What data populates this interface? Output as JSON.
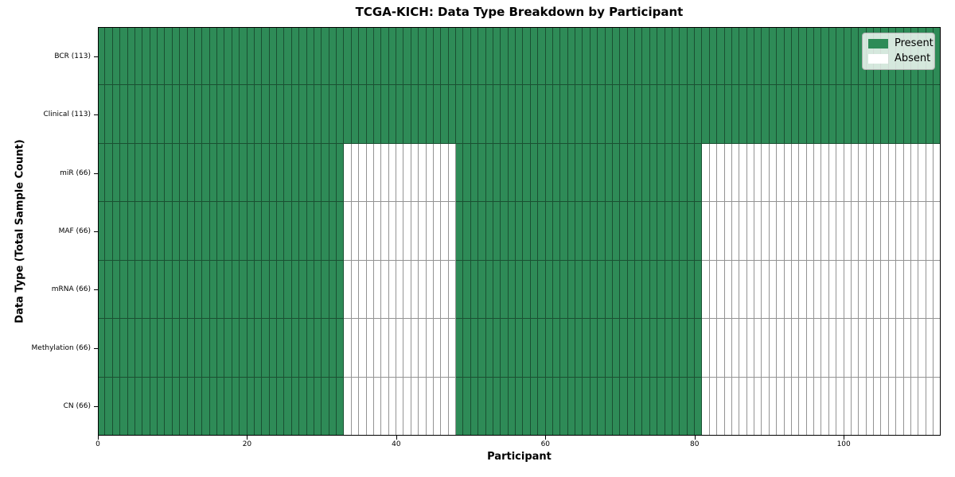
{
  "chart_data": {
    "type": "heatmap",
    "title": "TCGA-KICH: Data Type Breakdown by Participant",
    "xlabel": "Participant",
    "ylabel": "Data Type (Total Sample Count)",
    "x_range": [
      0,
      113
    ],
    "x_ticks": [
      0,
      20,
      40,
      60,
      80,
      100
    ],
    "n_participants": 113,
    "legend_position": "upper right",
    "legend": [
      {
        "label": "Present",
        "color": "#2e8b57"
      },
      {
        "label": "Absent",
        "color": "#ffffff"
      }
    ],
    "cell_edge_color": "rgba(0,0,0,0.42)",
    "grid": false,
    "rows": [
      {
        "label": "BCR (113)",
        "total": 113,
        "present_ranges": [
          [
            0,
            113
          ]
        ]
      },
      {
        "label": "Clinical (113)",
        "total": 113,
        "present_ranges": [
          [
            0,
            113
          ]
        ]
      },
      {
        "label": "miR (66)",
        "total": 66,
        "present_ranges": [
          [
            0,
            33
          ],
          [
            48,
            81
          ]
        ]
      },
      {
        "label": "MAF (66)",
        "total": 66,
        "present_ranges": [
          [
            0,
            33
          ],
          [
            48,
            81
          ]
        ]
      },
      {
        "label": "mRNA (66)",
        "total": 66,
        "present_ranges": [
          [
            0,
            33
          ],
          [
            48,
            81
          ]
        ]
      },
      {
        "label": "Methylation (66)",
        "total": 66,
        "present_ranges": [
          [
            0,
            33
          ],
          [
            48,
            81
          ]
        ]
      },
      {
        "label": "CN (66)",
        "total": 66,
        "present_ranges": [
          [
            0,
            33
          ],
          [
            48,
            81
          ]
        ]
      }
    ]
  }
}
